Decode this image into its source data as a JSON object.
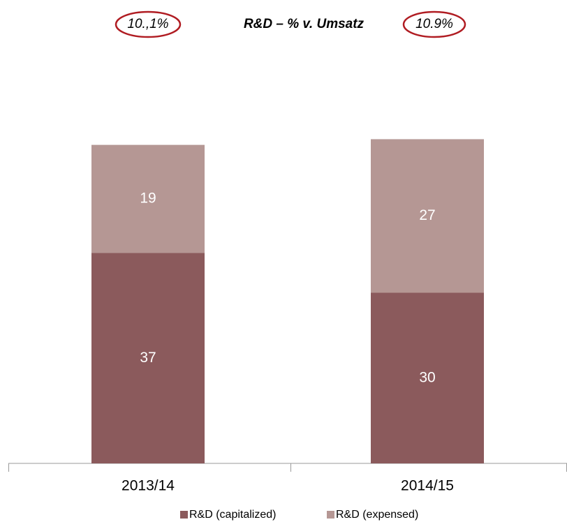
{
  "chart_data": {
    "type": "stacked_bar",
    "title": "R&D – % v. Umsatz",
    "annotations": [
      "10.,1%",
      "10.9%"
    ],
    "categories": [
      "2013/14",
      "2014/15"
    ],
    "series": [
      {
        "name": "R&D (capitalized)",
        "color": "#8b5a5c",
        "values": [
          37,
          30
        ]
      },
      {
        "name": "R&D (expensed)",
        "color": "#b59794",
        "values": [
          19,
          27
        ]
      }
    ]
  }
}
